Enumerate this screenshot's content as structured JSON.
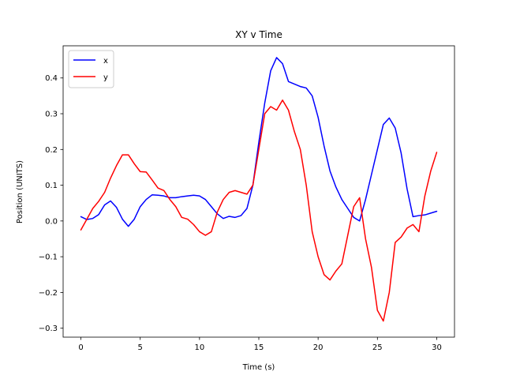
{
  "chart_data": {
    "type": "line",
    "title": "XY v Time",
    "xlabel": "Time (s)",
    "ylabel": "Position (UNITS)",
    "xlim": [
      -1.5,
      31.5
    ],
    "ylim": [
      -0.325,
      0.49
    ],
    "xticks": [
      0,
      5,
      10,
      15,
      20,
      25,
      30
    ],
    "yticks": [
      -0.3,
      -0.2,
      -0.1,
      0.0,
      0.1,
      0.2,
      0.3,
      0.4
    ],
    "xtick_labels": [
      "0",
      "5",
      "10",
      "15",
      "20",
      "25",
      "30"
    ],
    "ytick_labels": [
      "−0.3",
      "−0.2",
      "−0.1",
      "0.0",
      "0.1",
      "0.2",
      "0.3",
      "0.4"
    ],
    "grid": false,
    "legend_position": "top-left",
    "series": [
      {
        "name": "x",
        "color": "#0000ff",
        "x": [
          0,
          0.5,
          1,
          1.5,
          2,
          2.5,
          3,
          3.5,
          4,
          4.5,
          5,
          5.5,
          6,
          6.5,
          7,
          7.5,
          8,
          8.5,
          9,
          9.5,
          10,
          10.5,
          11,
          11.5,
          12,
          12.5,
          13,
          13.5,
          14,
          14.5,
          15,
          15.5,
          16,
          16.5,
          17,
          17.5,
          18,
          18.5,
          19,
          19.5,
          20,
          20.5,
          21,
          21.5,
          22,
          22.5,
          23,
          23.5,
          24,
          24.5,
          25,
          25.5,
          26,
          26.5,
          27,
          27.5,
          28,
          28.5,
          29,
          29.5,
          30
        ],
        "values": [
          0.012,
          0.004,
          0.007,
          0.018,
          0.045,
          0.056,
          0.038,
          0.005,
          -0.015,
          0.005,
          0.04,
          0.06,
          0.073,
          0.072,
          0.07,
          0.065,
          0.065,
          0.068,
          0.07,
          0.072,
          0.07,
          0.06,
          0.04,
          0.02,
          0.007,
          0.013,
          0.01,
          0.015,
          0.035,
          0.1,
          0.22,
          0.33,
          0.42,
          0.457,
          0.44,
          0.39,
          0.383,
          0.376,
          0.372,
          0.35,
          0.29,
          0.21,
          0.14,
          0.095,
          0.06,
          0.035,
          0.01,
          0.0,
          0.06,
          0.13,
          0.2,
          0.27,
          0.288,
          0.26,
          0.19,
          0.09,
          0.012,
          0.015,
          0.017,
          0.022,
          0.027
        ]
      },
      {
        "name": "y",
        "color": "#ff0000",
        "x": [
          0,
          0.5,
          1,
          1.5,
          2,
          2.5,
          3,
          3.5,
          4,
          4.5,
          5,
          5.5,
          6,
          6.5,
          7,
          7.5,
          8,
          8.5,
          9,
          9.5,
          10,
          10.5,
          11,
          11.5,
          12,
          12.5,
          13,
          13.5,
          14,
          14.5,
          15,
          15.5,
          16,
          16.5,
          17,
          17.5,
          18,
          18.5,
          19,
          19.5,
          20,
          20.5,
          21,
          21.5,
          22,
          22.5,
          23,
          23.5,
          24,
          24.5,
          25,
          25.5,
          26,
          26.5,
          27,
          27.5,
          28,
          28.5,
          29,
          29.5,
          30
        ],
        "values": [
          -0.025,
          0.005,
          0.035,
          0.055,
          0.08,
          0.12,
          0.155,
          0.185,
          0.185,
          0.16,
          0.138,
          0.137,
          0.115,
          0.092,
          0.085,
          0.06,
          0.04,
          0.01,
          0.005,
          -0.01,
          -0.03,
          -0.04,
          -0.03,
          0.025,
          0.06,
          0.08,
          0.085,
          0.08,
          0.075,
          0.1,
          0.2,
          0.3,
          0.32,
          0.31,
          0.338,
          0.31,
          0.25,
          0.2,
          0.1,
          -0.03,
          -0.1,
          -0.15,
          -0.165,
          -0.14,
          -0.12,
          -0.04,
          0.04,
          0.065,
          -0.05,
          -0.13,
          -0.25,
          -0.28,
          -0.2,
          -0.06,
          -0.045,
          -0.02,
          -0.01,
          -0.03,
          0.07,
          0.14,
          0.192
        ]
      }
    ]
  }
}
